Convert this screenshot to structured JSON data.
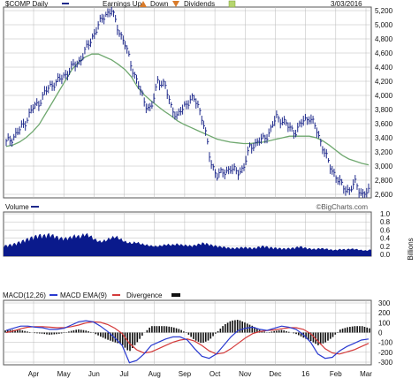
{
  "header": {
    "symbol_label": "$COMP Daily",
    "earnings_label": "Earnings Up",
    "down_label": "Down",
    "dividends_label": "Dividends",
    "date_label": "3/03/2016"
  },
  "colors": {
    "price_bar": "#1f2a8c",
    "moving_average": "#6fa86f",
    "volume_fill": "#0a1a8c",
    "macd_line": "#2a3ad0",
    "macd_signal": "#d43a3a",
    "histogram": "#111111",
    "grid": "#b8b8b8",
    "panel_bg": "#ffffff"
  },
  "chart_data": [
    {
      "type": "line",
      "panel": "price",
      "ytick_labels": [
        "5,200",
        "5,000",
        "4,800",
        "4,600",
        "4,400",
        "4,200",
        "4,000",
        "3,800",
        "3,600",
        "3,400",
        "3,200",
        "3,000",
        "2,800",
        "2,600"
      ],
      "ylim": [
        2600,
        5200
      ],
      "xtick_labels": [
        "Apr",
        "May",
        "Jun",
        "Jul",
        "Aug",
        "Sep",
        "Oct",
        "Nov",
        "Dec",
        "16",
        "Feb",
        "Mar"
      ],
      "series": [
        {
          "values": [
            3350,
            3420,
            3520,
            3650,
            3820,
            3900,
            4050,
            4150,
            4200,
            4280,
            4380,
            4450,
            4600,
            4780,
            4950,
            5100,
            5150,
            4900,
            4700,
            4400,
            4150,
            3900,
            3800,
            4200,
            4150,
            3850,
            3700,
            3850,
            3950,
            3900,
            3600,
            3100,
            2900,
            2950,
            3000,
            2950,
            3000,
            3300,
            3350,
            3400,
            3500,
            3700,
            3650,
            3550,
            3500,
            3650,
            3700,
            3550,
            3300,
            3050,
            2900,
            2750,
            2700,
            2800,
            2650,
            2680
          ]
        },
        {
          "values": [
            3300,
            3320,
            3360,
            3420,
            3500,
            3600,
            3750,
            3900,
            4050,
            4200,
            4350,
            4450,
            4520,
            4560,
            4560,
            4520,
            4480,
            4420,
            4350,
            4250,
            4100,
            4000,
            3920,
            3850,
            3780,
            3720,
            3650,
            3600,
            3560,
            3520,
            3480,
            3440,
            3400,
            3380,
            3360,
            3350,
            3340,
            3340,
            3350,
            3360,
            3380,
            3400,
            3420,
            3440,
            3440,
            3440,
            3440,
            3420,
            3380,
            3320,
            3250,
            3180,
            3130,
            3100,
            3070,
            3050
          ]
        }
      ]
    },
    {
      "type": "area",
      "panel": "volume",
      "title": "Volume",
      "watermark": "©BigCharts.com",
      "ylabel": "Billions",
      "ytick_labels": [
        "1.0",
        "0.8",
        "0.6",
        "0.4",
        "0.2",
        "0.0"
      ],
      "ylim": [
        0,
        1.0
      ],
      "series": [
        {
          "values": [
            0.22,
            0.24,
            0.26,
            0.3,
            0.34,
            0.38,
            0.42,
            0.45,
            0.44,
            0.47,
            0.43,
            0.39,
            0.38,
            0.4,
            0.44,
            0.42,
            0.48,
            0.43,
            0.35,
            0.31,
            0.34,
            0.39,
            0.42,
            0.36,
            0.3,
            0.28,
            0.3,
            0.26,
            0.24,
            0.22,
            0.21,
            0.23,
            0.25,
            0.24,
            0.26,
            0.24,
            0.23,
            0.22,
            0.25,
            0.28,
            0.26,
            0.23,
            0.21,
            0.2,
            0.18,
            0.17,
            0.18,
            0.19,
            0.18,
            0.17,
            0.2,
            0.22,
            0.19,
            0.18,
            0.17,
            0.16,
            0.17,
            0.18,
            0.21,
            0.18,
            0.16,
            0.15,
            0.17,
            0.16,
            0.14,
            0.13,
            0.15,
            0.14,
            0.16,
            0.15,
            0.13,
            0.12,
            0.14
          ]
        }
      ]
    },
    {
      "type": "line",
      "panel": "macd",
      "ytick_labels": [
        "300",
        "200",
        "100",
        "0",
        "-100",
        "-200",
        "-300"
      ],
      "ylim": [
        -300,
        300
      ],
      "legend": [
        "MACD(12,26)",
        "MACD EMA(9)",
        "Divergence"
      ],
      "series": [
        {
          "name": "MACD(12,26)",
          "values": [
            20,
            40,
            60,
            60,
            50,
            45,
            30,
            30,
            40,
            70,
            100,
            110,
            100,
            60,
            10,
            -50,
            -120,
            -280,
            -260,
            -200,
            -120,
            -90,
            -60,
            -40,
            -40,
            -70,
            -150,
            -220,
            -240,
            -200,
            -120,
            -40,
            20,
            40,
            50,
            30,
            20,
            40,
            60,
            50,
            30,
            -20,
            -90,
            -200,
            -240,
            -230,
            -170,
            -130,
            -100,
            -70,
            -60
          ]
        },
        {
          "name": "MACD EMA(9)",
          "values": [
            0,
            15,
            35,
            50,
            55,
            55,
            50,
            45,
            45,
            55,
            70,
            90,
            100,
            95,
            75,
            40,
            -10,
            -100,
            -160,
            -190,
            -180,
            -150,
            -120,
            -90,
            -70,
            -60,
            -80,
            -120,
            -170,
            -200,
            -190,
            -150,
            -100,
            -50,
            -10,
            10,
            20,
            25,
            35,
            45,
            45,
            30,
            -10,
            -80,
            -150,
            -190,
            -200,
            -180,
            -160,
            -130,
            -100
          ]
        },
        {
          "name": "Divergence",
          "values": [
            20,
            25,
            25,
            10,
            -5,
            -10,
            -20,
            -15,
            -5,
            15,
            30,
            20,
            0,
            -35,
            -65,
            -90,
            -110,
            -180,
            -100,
            -10,
            60,
            60,
            60,
            50,
            30,
            -10,
            -70,
            -100,
            -70,
            0,
            70,
            110,
            120,
            90,
            60,
            20,
            0,
            15,
            25,
            5,
            -15,
            -50,
            -80,
            -120,
            -90,
            -40,
            30,
            50,
            60,
            60,
            40
          ]
        }
      ]
    }
  ]
}
